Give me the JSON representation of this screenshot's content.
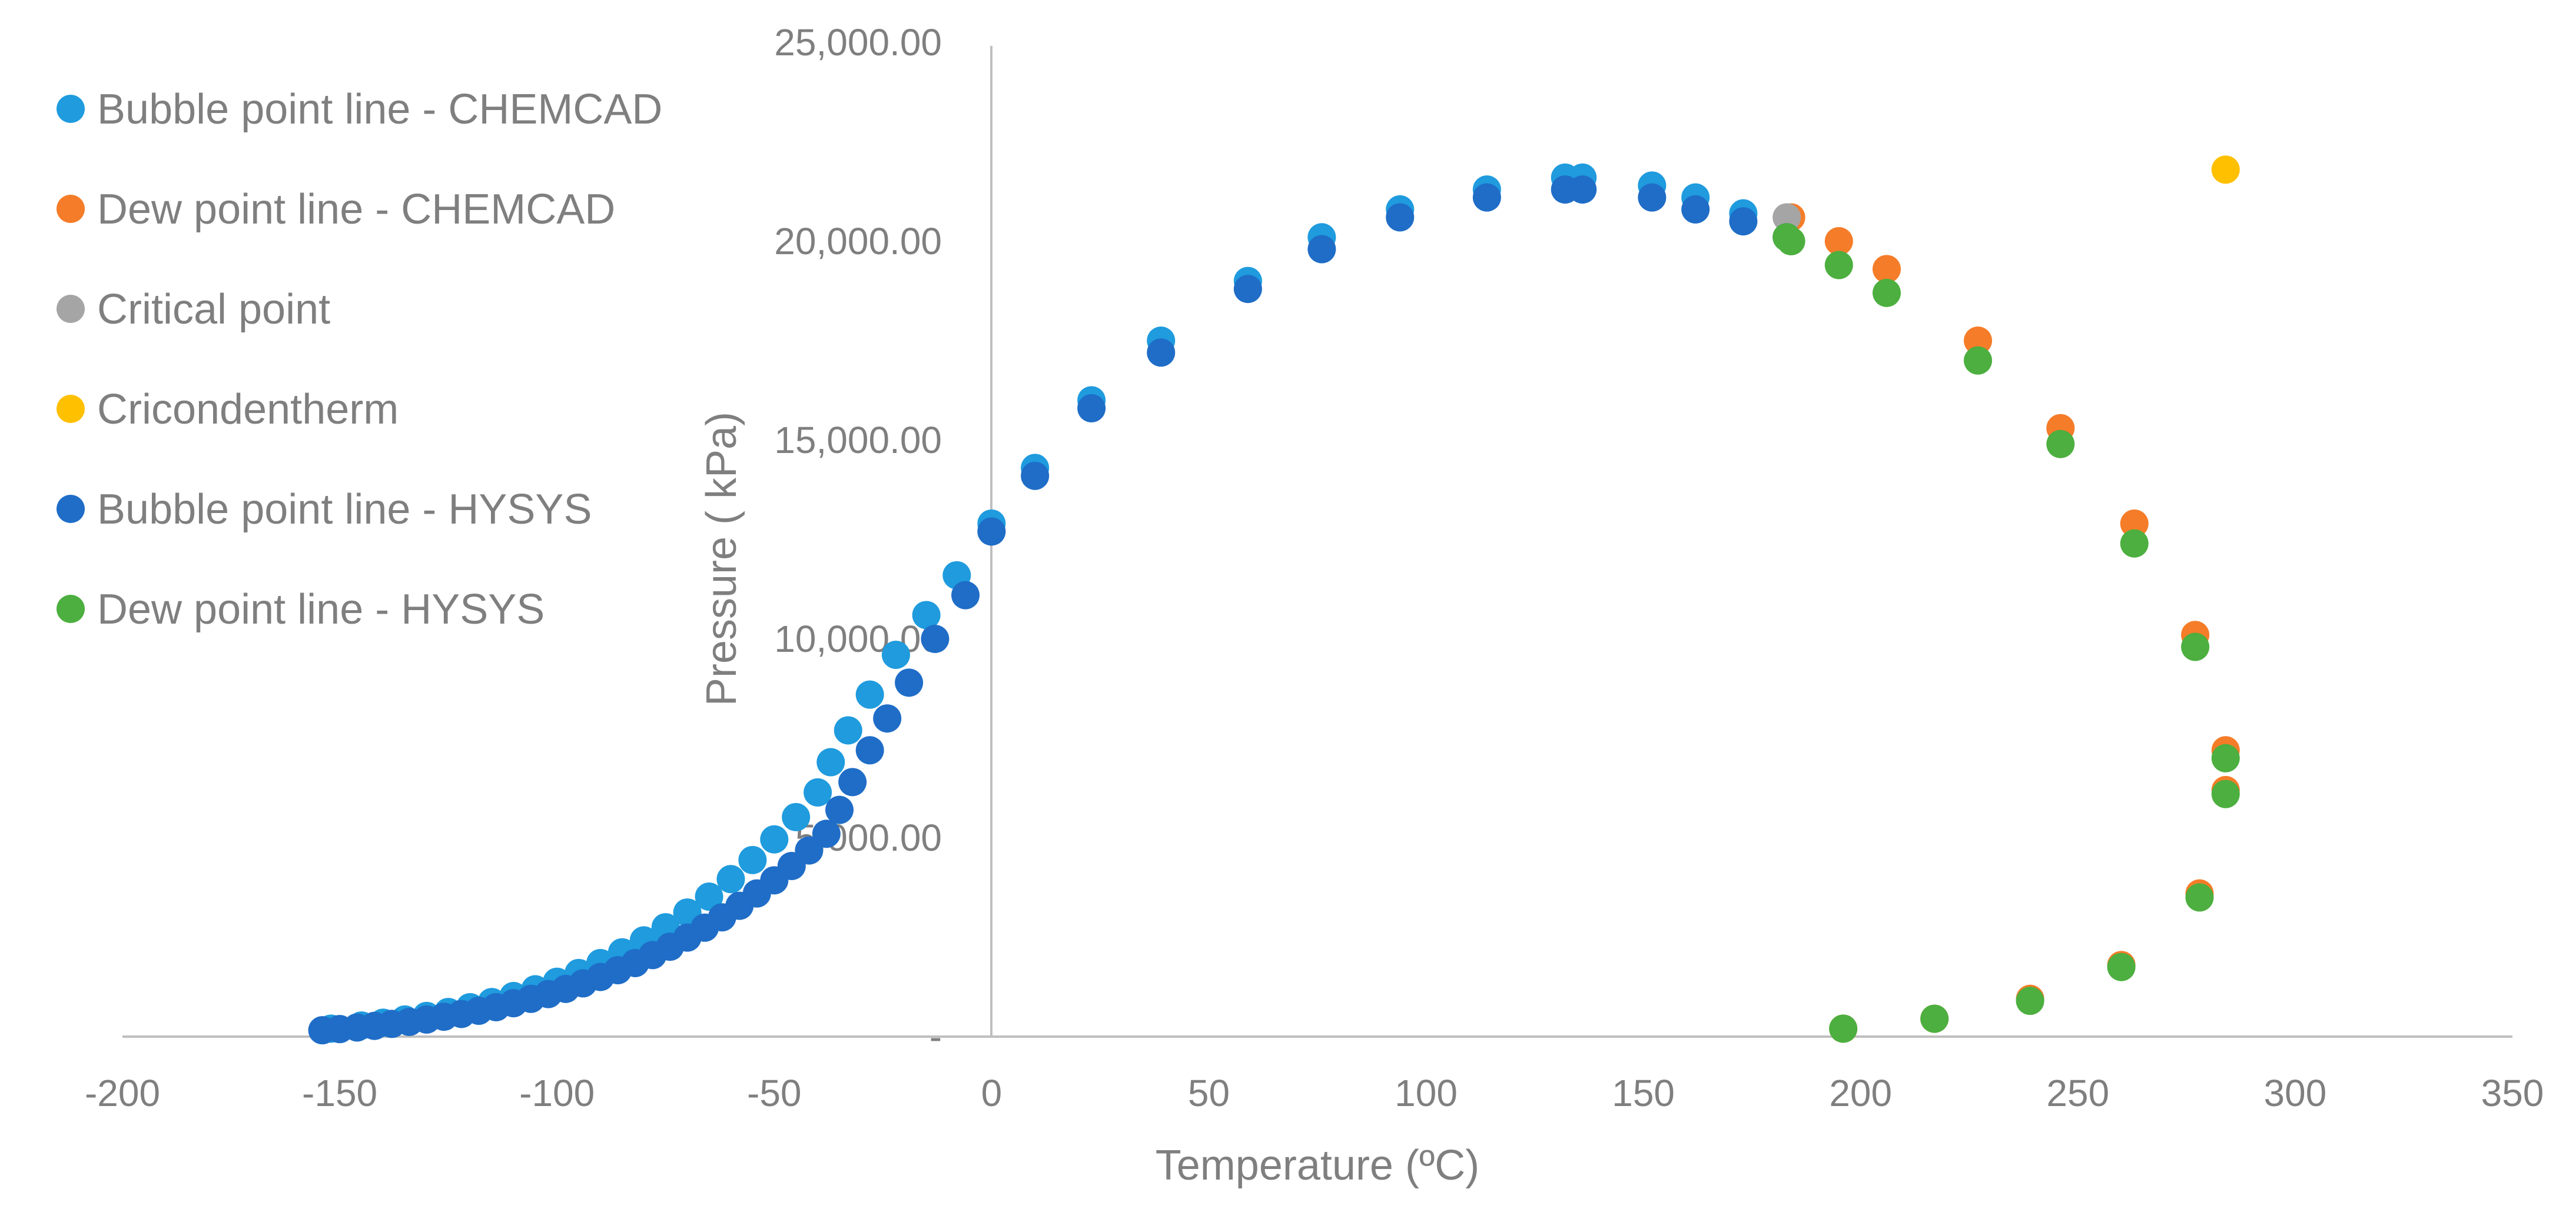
{
  "chart_data": {
    "type": "scatter",
    "title": "",
    "xlabel": "Temperature (ºC)",
    "ylabel": "Pressure ( kPa)",
    "xlim": [
      -200,
      350
    ],
    "ylim": [
      0,
      25000
    ],
    "x_ticks": [
      -200,
      -150,
      -100,
      -50,
      0,
      50,
      100,
      150,
      200,
      250,
      300,
      350
    ],
    "x_tick_labels": [
      "-200",
      "-150",
      "-100",
      "-50",
      "0",
      "50",
      "100",
      "150",
      "200",
      "250",
      "300",
      "350"
    ],
    "y_ticks": [
      0,
      5000,
      10000,
      15000,
      20000,
      25000
    ],
    "y_tick_labels": [
      "-",
      "5,000.00",
      "10,000.00",
      "15,000.00",
      "20,000.00",
      "25,000.00"
    ],
    "grid": false,
    "legend_position": "left",
    "series": [
      {
        "name": "Bubble point line - CHEMCAD",
        "color": "#1f9bde",
        "points": [
          [
            -152,
            200
          ],
          [
            -145,
            280
          ],
          [
            -140,
            350
          ],
          [
            -135,
            430
          ],
          [
            -130,
            520
          ],
          [
            -125,
            620
          ],
          [
            -120,
            740
          ],
          [
            -115,
            870
          ],
          [
            -110,
            1020
          ],
          [
            -105,
            1190
          ],
          [
            -100,
            1380
          ],
          [
            -95,
            1600
          ],
          [
            -90,
            1850
          ],
          [
            -85,
            2120
          ],
          [
            -80,
            2420
          ],
          [
            -75,
            2750
          ],
          [
            -70,
            3120
          ],
          [
            -65,
            3520
          ],
          [
            -60,
            3960
          ],
          [
            -55,
            4440
          ],
          [
            -50,
            4960
          ],
          [
            -45,
            5520
          ],
          [
            -40,
            6140
          ],
          [
            -37,
            6900
          ],
          [
            -33,
            7700
          ],
          [
            -28,
            8600
          ],
          [
            -22,
            9600
          ],
          [
            -15,
            10600
          ],
          [
            -8,
            11600
          ],
          [
            0,
            12900
          ],
          [
            10,
            14300
          ],
          [
            23,
            16000
          ],
          [
            39,
            17500
          ],
          [
            59,
            19000
          ],
          [
            76,
            20100
          ],
          [
            94,
            20800
          ],
          [
            114,
            21300
          ],
          [
            132,
            21600
          ],
          [
            136,
            21600
          ],
          [
            152,
            21400
          ],
          [
            162,
            21100
          ],
          [
            173,
            20700
          ]
        ]
      },
      {
        "name": "Dew point line - CHEMCAD",
        "color": "#f57c28",
        "points": [
          [
            196,
            200
          ],
          [
            217,
            450
          ],
          [
            239,
            950
          ],
          [
            260,
            1800
          ],
          [
            278,
            3600
          ],
          [
            284,
            6200
          ],
          [
            284,
            7200
          ],
          [
            277,
            10100
          ],
          [
            263,
            12900
          ],
          [
            246,
            15300
          ],
          [
            227,
            17500
          ],
          [
            206,
            19300
          ],
          [
            195,
            20000
          ],
          [
            184,
            20600
          ]
        ]
      },
      {
        "name": "Critical point",
        "color": "#a5a5a5",
        "points": [
          [
            183,
            20600
          ]
        ]
      },
      {
        "name": "Cricondentherm",
        "color": "#ffc000",
        "points": [
          [
            284,
            21800
          ]
        ]
      },
      {
        "name": "Bubble point line - HYSYS",
        "color": "#1f6dc7",
        "points": [
          [
            -154,
            160
          ],
          [
            -150,
            190
          ],
          [
            -146,
            230
          ],
          [
            -142,
            270
          ],
          [
            -138,
            320
          ],
          [
            -134,
            370
          ],
          [
            -130,
            430
          ],
          [
            -126,
            500
          ],
          [
            -122,
            570
          ],
          [
            -118,
            650
          ],
          [
            -114,
            740
          ],
          [
            -110,
            840
          ],
          [
            -106,
            950
          ],
          [
            -102,
            1070
          ],
          [
            -98,
            1200
          ],
          [
            -94,
            1340
          ],
          [
            -90,
            1500
          ],
          [
            -86,
            1670
          ],
          [
            -82,
            1850
          ],
          [
            -78,
            2050
          ],
          [
            -74,
            2260
          ],
          [
            -70,
            2490
          ],
          [
            -66,
            2740
          ],
          [
            -62,
            3000
          ],
          [
            -58,
            3290
          ],
          [
            -54,
            3600
          ],
          [
            -50,
            3930
          ],
          [
            -46,
            4290
          ],
          [
            -42,
            4680
          ],
          [
            -38,
            5100
          ],
          [
            -35,
            5700
          ],
          [
            -32,
            6400
          ],
          [
            -28,
            7200
          ],
          [
            -24,
            8000
          ],
          [
            -19,
            8900
          ],
          [
            -13,
            10000
          ],
          [
            -6,
            11100
          ],
          [
            0,
            12700
          ],
          [
            10,
            14100
          ],
          [
            23,
            15800
          ],
          [
            39,
            17200
          ],
          [
            59,
            18800
          ],
          [
            76,
            19800
          ],
          [
            94,
            20600
          ],
          [
            114,
            21100
          ],
          [
            132,
            21300
          ],
          [
            136,
            21300
          ],
          [
            152,
            21100
          ],
          [
            162,
            20800
          ],
          [
            173,
            20500
          ],
          [
            183,
            20100
          ]
        ]
      },
      {
        "name": "Dew point line - HYSYS",
        "color": "#4caf3f",
        "points": [
          [
            196,
            200
          ],
          [
            217,
            450
          ],
          [
            239,
            900
          ],
          [
            260,
            1750
          ],
          [
            278,
            3500
          ],
          [
            284,
            6100
          ],
          [
            284,
            7000
          ],
          [
            277,
            9800
          ],
          [
            263,
            12400
          ],
          [
            246,
            14900
          ],
          [
            227,
            17000
          ],
          [
            206,
            18700
          ],
          [
            195,
            19400
          ],
          [
            184,
            20000
          ],
          [
            183,
            20100
          ]
        ]
      }
    ]
  }
}
